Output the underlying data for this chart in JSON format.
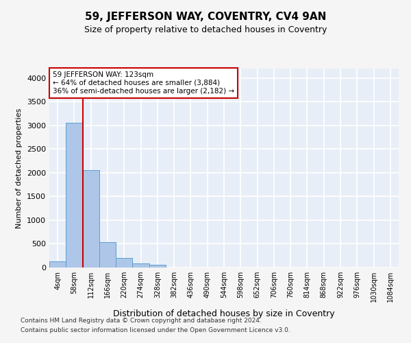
{
  "title": "59, JEFFERSON WAY, COVENTRY, CV4 9AN",
  "subtitle": "Size of property relative to detached houses in Coventry",
  "xlabel": "Distribution of detached houses by size in Coventry",
  "ylabel": "Number of detached properties",
  "bin_labels": [
    "4sqm",
    "58sqm",
    "112sqm",
    "166sqm",
    "220sqm",
    "274sqm",
    "328sqm",
    "382sqm",
    "436sqm",
    "490sqm",
    "544sqm",
    "598sqm",
    "652sqm",
    "706sqm",
    "760sqm",
    "814sqm",
    "868sqm",
    "922sqm",
    "976sqm",
    "1030sqm",
    "1084sqm"
  ],
  "bar_values": [
    130,
    3060,
    2060,
    530,
    210,
    90,
    55,
    0,
    0,
    0,
    0,
    0,
    0,
    0,
    0,
    0,
    0,
    0,
    0,
    0,
    0
  ],
  "bar_color": "#aec6e8",
  "bar_edge_color": "#5a9fd4",
  "background_color": "#e8eef7",
  "grid_color": "#ffffff",
  "vline_color": "#cc0000",
  "annotation_text": "59 JEFFERSON WAY: 123sqm\n← 64% of detached houses are smaller (3,884)\n36% of semi-detached houses are larger (2,182) →",
  "annotation_box_color": "#ffffff",
  "annotation_box_edge": "#cc0000",
  "ylim": [
    0,
    4200
  ],
  "yticks": [
    0,
    500,
    1000,
    1500,
    2000,
    2500,
    3000,
    3500,
    4000
  ],
  "footer_line1": "Contains HM Land Registry data © Crown copyright and database right 2024.",
  "footer_line2": "Contains public sector information licensed under the Open Government Licence v3.0.",
  "fig_facecolor": "#f5f5f5"
}
